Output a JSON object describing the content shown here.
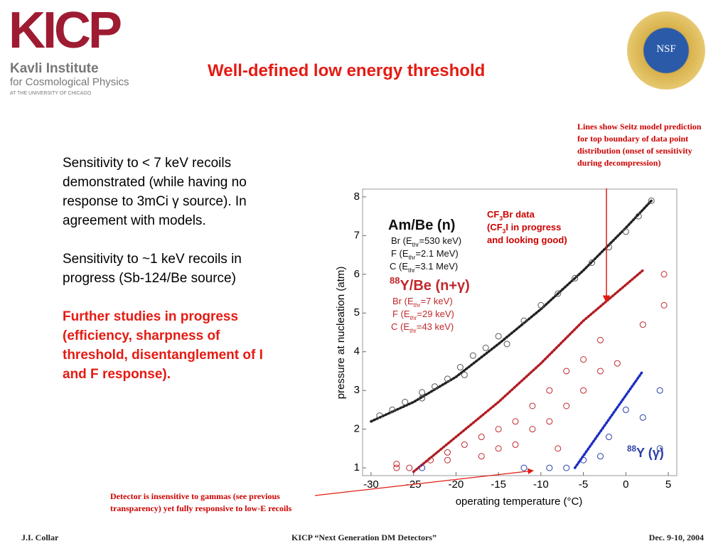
{
  "logo": {
    "name": "KICP",
    "line1": "Kavli Institute",
    "line2": "for Cosmological Physics",
    "line3": "AT THE UNIVERSITY OF CHICAGO"
  },
  "nsf": "NSF",
  "title": "Well-defined low energy threshold",
  "body": [
    "Sensitivity to < 7 keV recoils demonstrated (while having no response to 3mCi  γ source). In agreement with models.",
    "Sensitivity to ~1 keV recoils in progress (Sb-124/Be source)"
  ],
  "highlight": "Further studies in progress (efficiency, sharpness of threshold, disentanglement of I and F response).",
  "note_model": "Lines show Seitz model prediction for top boundary of data point distribution (onset of sensitivity during decompression)",
  "note_cf3": [
    {
      "pre": "CF",
      "sub": "3",
      "post": "Br data"
    },
    {
      "pre": "(CF",
      "sub": "3",
      "post": "I in progress"
    },
    {
      "pre": "and looking good)"
    }
  ],
  "note_gamma": [
    "Detector is insensitive to gammas (see previous",
    "transparency) yet fully responsive to low-E recoils"
  ],
  "footer": {
    "left": "J.I. Collar",
    "center": "KICP “Next Generation DM Detectors”",
    "right": "Dec. 9-10, 2004"
  },
  "chart_data": {
    "type": "scatter",
    "xlabel": "operating temperature (°C)",
    "ylabel": "pressure at nucleation (atm)",
    "xlim": [
      -31,
      6
    ],
    "ylim": [
      0.8,
      8.2
    ],
    "xticks": [
      -30,
      -25,
      -20,
      -15,
      -10,
      -5,
      0,
      5
    ],
    "yticks": [
      1,
      2,
      3,
      4,
      5,
      6,
      7,
      8
    ],
    "series": [
      {
        "name": "Am/Be (n)",
        "color": "#555555",
        "legend": [
          {
            "pre": "Br (E",
            "sub": "thr",
            "post": "=530 keV)"
          },
          {
            "pre": "F (E",
            "sub": "thr",
            "post": "=2.1 MeV)"
          },
          {
            "pre": "C (E",
            "sub": "thr",
            "post": "=3.1 MeV)"
          }
        ],
        "x": [
          -29,
          -27.5,
          -26,
          -24,
          -22.5,
          -21,
          -19.5,
          -18,
          -16.5,
          -15,
          -12,
          -10,
          -8,
          -6,
          -4,
          -2,
          0,
          1.5,
          3,
          -24,
          -19,
          -14
        ],
        "values": [
          2.35,
          2.5,
          2.7,
          2.95,
          3.1,
          3.3,
          3.6,
          3.9,
          4.1,
          4.4,
          4.8,
          5.2,
          5.5,
          5.9,
          6.3,
          6.7,
          7.1,
          7.5,
          7.9,
          2.8,
          3.4,
          4.2
        ]
      },
      {
        "name": "Y/Be (n+γ)",
        "sup": "88",
        "color": "#c0282d",
        "legend": [
          {
            "pre": "Br (E",
            "sub": "thr",
            "post": "=7 keV)"
          },
          {
            "pre": "F (E",
            "sub": "thr",
            "post": "=29 keV)"
          },
          {
            "pre": "C (E",
            "sub": "thr",
            "post": "=43 keV)"
          }
        ],
        "x": [
          -27,
          -27,
          -25.5,
          -23,
          -21,
          -21,
          -19,
          -17,
          -17,
          -15,
          -15,
          -13,
          -13,
          -11,
          -11,
          -9,
          -9,
          -7,
          -7,
          -5,
          -5,
          -3,
          -3,
          -8,
          4.5,
          4.5,
          2,
          -1
        ],
        "values": [
          1.0,
          1.1,
          1.0,
          1.2,
          1.4,
          1.2,
          1.6,
          1.8,
          1.3,
          2.0,
          1.5,
          2.2,
          1.6,
          2.6,
          2.0,
          3.0,
          2.2,
          3.5,
          2.6,
          3.8,
          3.0,
          4.3,
          3.5,
          1.5,
          6.0,
          5.2,
          4.7,
          3.7
        ]
      },
      {
        "name": "Y (γ)",
        "sup": "88",
        "color": "#2a3fa8",
        "x": [
          -24,
          -12,
          -9,
          -7,
          -3,
          -2,
          0,
          2,
          4,
          4,
          -5
        ],
        "values": [
          1.0,
          1.0,
          1.0,
          1.0,
          1.3,
          1.8,
          2.5,
          2.3,
          3.0,
          1.5,
          1.2
        ]
      }
    ],
    "model_lines": [
      {
        "color": "#222222",
        "x": [
          -30,
          -25,
          -20,
          -15,
          -10,
          -5,
          0,
          3
        ],
        "values": [
          2.2,
          2.7,
          3.35,
          4.2,
          5.1,
          6.1,
          7.2,
          7.9
        ]
      },
      {
        "color": "#b01e23",
        "x": [
          -25,
          -20,
          -15,
          -10,
          -5,
          2
        ],
        "values": [
          0.9,
          1.8,
          2.7,
          3.7,
          4.8,
          6.1
        ]
      },
      {
        "color": "#1c2fc0",
        "x": [
          -6,
          2
        ],
        "values": [
          1.0,
          3.5
        ]
      }
    ]
  }
}
